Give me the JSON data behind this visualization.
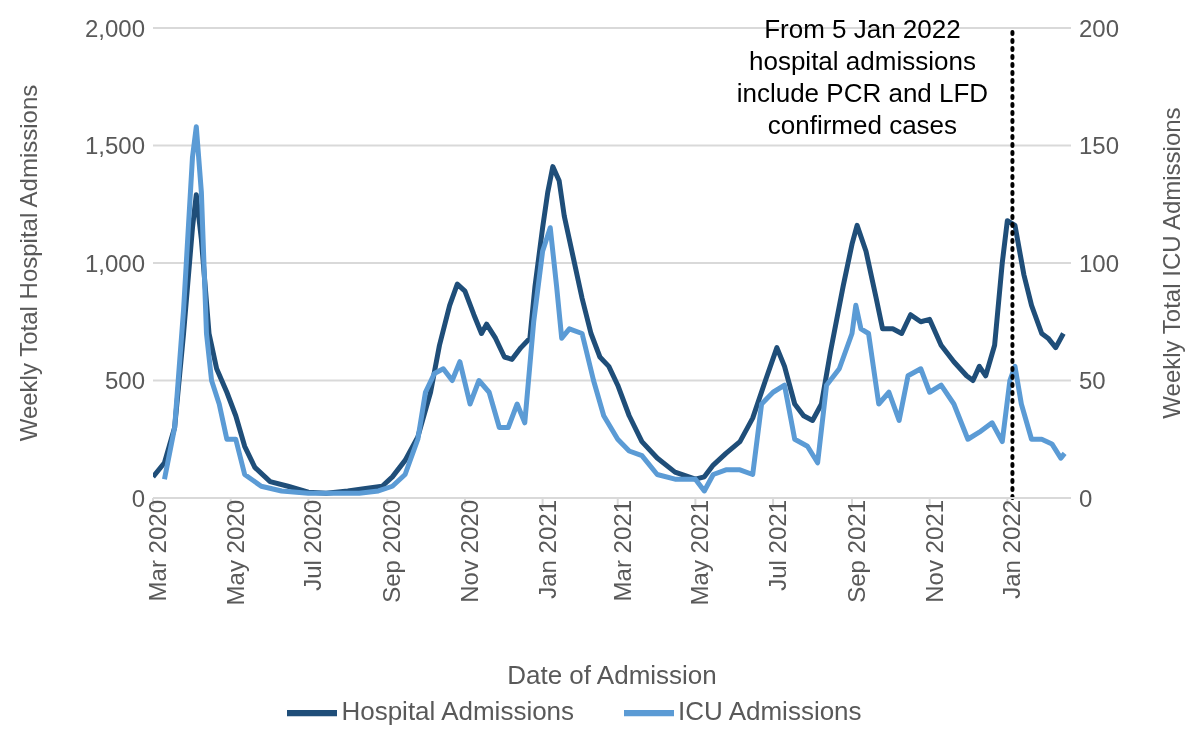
{
  "chart_data": {
    "type": "line",
    "xlabel": "Date of Admission",
    "ylabel": "Weekly Total Hospital Admissions",
    "y2label": "Weekly Total ICU Admissions",
    "xlim": [
      "2020-03-01",
      "2022-02-20"
    ],
    "xticks": [
      {
        "value": "2020-03-01",
        "label": "Mar 2020"
      },
      {
        "value": "2020-05-01",
        "label": "May 2020"
      },
      {
        "value": "2020-07-01",
        "label": "Jul 2020"
      },
      {
        "value": "2020-09-01",
        "label": "Sep 2020"
      },
      {
        "value": "2020-11-01",
        "label": "Nov 2020"
      },
      {
        "value": "2021-01-01",
        "label": "Jan 2021"
      },
      {
        "value": "2021-03-01",
        "label": "Mar 2021"
      },
      {
        "value": "2021-05-01",
        "label": "May 2021"
      },
      {
        "value": "2021-07-01",
        "label": "Jul 2021"
      },
      {
        "value": "2021-09-01",
        "label": "Sep 2021"
      },
      {
        "value": "2021-11-01",
        "label": "Nov 2021"
      },
      {
        "value": "2022-01-01",
        "label": "Jan 2022"
      }
    ],
    "ylim": [
      0,
      2000
    ],
    "yticks": [
      {
        "value": 0,
        "label": "0"
      },
      {
        "value": 500,
        "label": "500"
      },
      {
        "value": 1000,
        "label": "1,000"
      },
      {
        "value": 1500,
        "label": "1,500"
      },
      {
        "value": 2000,
        "label": "2,000"
      }
    ],
    "y2lim": [
      0,
      200
    ],
    "y2ticks": [
      0,
      50,
      100,
      150,
      200
    ],
    "grid": "y",
    "legend": "bottom",
    "marker": "none",
    "line_style": "solid",
    "ref_lines": [
      {
        "axis": "x",
        "value": "2022-01-05",
        "label": "From 5 Jan 2022 hospital admissions include PCR and LFD confirmed cases",
        "color": "#000000",
        "line_style": "dotted"
      }
    ],
    "series": [
      {
        "name": "Hospital Admissions",
        "color": "#1f4e79",
        "x": [
          "2020-03-01",
          "2020-03-10",
          "2020-03-18",
          "2020-03-25",
          "2020-04-01",
          "2020-04-04",
          "2020-04-08",
          "2020-04-14",
          "2020-04-20",
          "2020-04-28",
          "2020-05-05",
          "2020-05-12",
          "2020-05-20",
          "2020-06-01",
          "2020-06-15",
          "2020-07-01",
          "2020-07-15",
          "2020-08-01",
          "2020-08-15",
          "2020-08-28",
          "2020-09-05",
          "2020-09-15",
          "2020-09-25",
          "2020-10-05",
          "2020-10-12",
          "2020-10-20",
          "2020-10-26",
          "2020-11-01",
          "2020-11-08",
          "2020-11-14",
          "2020-11-18",
          "2020-11-25",
          "2020-12-02",
          "2020-12-08",
          "2020-12-15",
          "2020-12-22",
          "2020-12-26",
          "2021-01-01",
          "2021-01-05",
          "2021-01-09",
          "2021-01-14",
          "2021-01-18",
          "2021-01-24",
          "2021-02-01",
          "2021-02-08",
          "2021-02-15",
          "2021-02-22",
          "2021-03-01",
          "2021-03-10",
          "2021-03-20",
          "2021-04-01",
          "2021-04-15",
          "2021-05-01",
          "2021-05-08",
          "2021-05-15",
          "2021-05-25",
          "2021-06-05",
          "2021-06-15",
          "2021-06-25",
          "2021-07-04",
          "2021-07-10",
          "2021-07-18",
          "2021-07-25",
          "2021-08-01",
          "2021-08-08",
          "2021-08-15",
          "2021-08-25",
          "2021-09-01",
          "2021-09-05",
          "2021-09-12",
          "2021-09-20",
          "2021-09-25",
          "2021-10-03",
          "2021-10-10",
          "2021-10-17",
          "2021-10-25",
          "2021-11-01",
          "2021-11-10",
          "2021-11-20",
          "2021-11-30",
          "2021-12-05",
          "2021-12-10",
          "2021-12-15",
          "2021-12-22",
          "2021-12-28",
          "2022-01-01",
          "2022-01-07",
          "2022-01-14",
          "2022-01-20",
          "2022-01-28",
          "2022-02-02",
          "2022-02-08",
          "2022-02-14"
        ],
        "values": [
          90,
          150,
          300,
          700,
          1150,
          1290,
          1100,
          700,
          550,
          450,
          350,
          220,
          130,
          70,
          50,
          25,
          20,
          30,
          40,
          50,
          90,
          160,
          260,
          450,
          650,
          820,
          910,
          880,
          780,
          700,
          740,
          680,
          600,
          590,
          640,
          680,
          900,
          1150,
          1300,
          1410,
          1350,
          1200,
          1050,
          850,
          700,
          600,
          560,
          480,
          350,
          240,
          170,
          110,
          80,
          90,
          140,
          190,
          240,
          340,
          500,
          640,
          560,
          400,
          350,
          330,
          400,
          620,
          900,
          1080,
          1160,
          1050,
          850,
          720,
          720,
          700,
          780,
          750,
          760,
          650,
          580,
          520,
          500,
          560,
          520,
          650,
          1000,
          1180,
          1160,
          950,
          820,
          700,
          680,
          640,
          700
        ]
      },
      {
        "name": "ICU Admissions",
        "color": "#5b9bd5",
        "axis": "y2",
        "x": [
          "2020-03-10",
          "2020-03-18",
          "2020-03-25",
          "2020-04-01",
          "2020-04-04",
          "2020-04-08",
          "2020-04-12",
          "2020-04-16",
          "2020-04-22",
          "2020-04-28",
          "2020-05-05",
          "2020-05-12",
          "2020-05-25",
          "2020-06-10",
          "2020-07-01",
          "2020-07-20",
          "2020-08-10",
          "2020-08-25",
          "2020-09-05",
          "2020-09-15",
          "2020-09-25",
          "2020-10-01",
          "2020-10-08",
          "2020-10-15",
          "2020-10-22",
          "2020-10-28",
          "2020-11-05",
          "2020-11-12",
          "2020-11-20",
          "2020-11-28",
          "2020-12-05",
          "2020-12-12",
          "2020-12-18",
          "2020-12-25",
          "2021-01-01",
          "2021-01-07",
          "2021-01-12",
          "2021-01-16",
          "2021-01-22",
          "2021-02-01",
          "2021-02-10",
          "2021-02-18",
          "2021-03-01",
          "2021-03-10",
          "2021-03-20",
          "2021-04-01",
          "2021-04-15",
          "2021-05-01",
          "2021-05-08",
          "2021-05-15",
          "2021-05-25",
          "2021-06-05",
          "2021-06-15",
          "2021-06-22",
          "2021-07-01",
          "2021-07-10",
          "2021-07-18",
          "2021-07-28",
          "2021-08-05",
          "2021-08-12",
          "2021-08-22",
          "2021-09-01",
          "2021-09-04",
          "2021-09-08",
          "2021-09-14",
          "2021-09-22",
          "2021-09-30",
          "2021-10-08",
          "2021-10-15",
          "2021-10-25",
          "2021-11-01",
          "2021-11-10",
          "2021-11-20",
          "2021-12-01",
          "2021-12-10",
          "2021-12-20",
          "2021-12-28",
          "2022-01-03",
          "2022-01-07",
          "2022-01-12",
          "2022-01-20",
          "2022-01-28",
          "2022-02-05",
          "2022-02-12",
          "2022-02-15"
        ],
        "values": [
          8,
          30,
          80,
          145,
          158,
          130,
          70,
          50,
          40,
          25,
          25,
          10,
          5,
          3,
          2,
          2,
          2,
          3,
          5,
          10,
          25,
          45,
          53,
          55,
          50,
          58,
          40,
          50,
          45,
          30,
          30,
          40,
          32,
          75,
          105,
          115,
          90,
          68,
          72,
          70,
          50,
          35,
          25,
          20,
          18,
          10,
          8,
          8,
          3,
          10,
          12,
          12,
          10,
          40,
          45,
          48,
          25,
          22,
          15,
          48,
          55,
          70,
          82,
          72,
          70,
          40,
          45,
          33,
          52,
          55,
          45,
          48,
          40,
          25,
          28,
          32,
          24,
          50,
          56,
          40,
          25,
          25,
          23,
          17,
          19
        ]
      }
    ]
  }
}
